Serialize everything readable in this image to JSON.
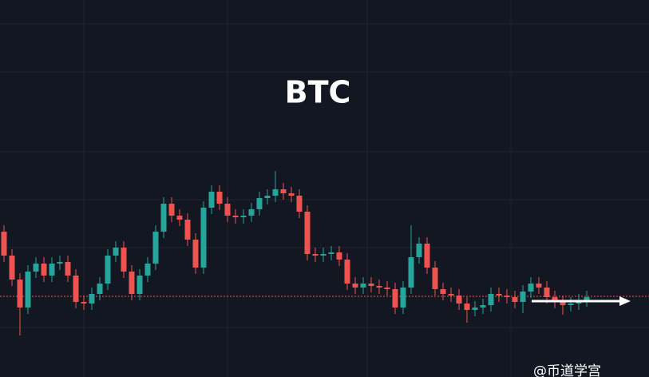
{
  "chart_data": {
    "type": "candlestick",
    "title": "BTC",
    "watermark": "@币道学宫",
    "ylim": [
      0,
      472
    ],
    "up_color": "#26a69a",
    "down_color": "#ef5350",
    "price_line": 101,
    "price_line_color": "#ef5350",
    "open": [
      182,
      152,
      122,
      87,
      132,
      142,
      127,
      142,
      144,
      127,
      94,
      92,
      104,
      117,
      152,
      162,
      132,
      104,
      127,
      142,
      182,
      217,
      202,
      197,
      172,
      137,
      212,
      232,
      217,
      202,
      200,
      202,
      210,
      224,
      227,
      235,
      230,
      227,
      207,
      154,
      152,
      154,
      156,
      147,
      117,
      112,
      117,
      114,
      112,
      110,
      87,
      112,
      150,
      167,
      137,
      110,
      104,
      102,
      92,
      84,
      87,
      90,
      104,
      102,
      100,
      94,
      107,
      117,
      112,
      100,
      94,
      90,
      92,
      96
    ],
    "high": [
      190,
      160,
      130,
      140,
      150,
      150,
      150,
      152,
      152,
      135,
      102,
      112,
      125,
      160,
      170,
      170,
      140,
      135,
      150,
      190,
      225,
      225,
      210,
      205,
      180,
      220,
      240,
      240,
      225,
      210,
      210,
      218,
      232,
      235,
      258,
      243,
      238,
      235,
      215,
      162,
      162,
      164,
      164,
      155,
      125,
      125,
      125,
      122,
      120,
      118,
      120,
      190,
      175,
      175,
      145,
      118,
      112,
      110,
      100,
      95,
      98,
      112,
      112,
      110,
      108,
      115,
      125,
      125,
      120,
      108,
      102,
      100,
      104,
      108
    ],
    "low": [
      144,
      114,
      52,
      79,
      124,
      119,
      119,
      134,
      119,
      86,
      84,
      84,
      96,
      109,
      144,
      124,
      96,
      96,
      119,
      134,
      174,
      194,
      189,
      164,
      129,
      129,
      204,
      209,
      194,
      192,
      192,
      194,
      202,
      216,
      219,
      222,
      219,
      199,
      146,
      144,
      144,
      146,
      139,
      109,
      104,
      104,
      106,
      104,
      102,
      79,
      79,
      104,
      142,
      129,
      102,
      96,
      94,
      84,
      68,
      76,
      79,
      82,
      94,
      92,
      86,
      80,
      99,
      104,
      92,
      86,
      78,
      82,
      84,
      88
    ],
    "close": [
      152,
      122,
      87,
      132,
      142,
      127,
      142,
      144,
      127,
      94,
      92,
      104,
      117,
      152,
      162,
      132,
      104,
      127,
      142,
      182,
      217,
      202,
      197,
      172,
      137,
      212,
      232,
      217,
      202,
      200,
      202,
      210,
      224,
      227,
      235,
      230,
      227,
      207,
      154,
      152,
      154,
      156,
      147,
      117,
      112,
      117,
      114,
      112,
      110,
      87,
      112,
      150,
      167,
      137,
      110,
      104,
      102,
      92,
      84,
      87,
      90,
      104,
      102,
      100,
      94,
      107,
      117,
      112,
      100,
      94,
      90,
      92,
      96,
      100
    ]
  }
}
